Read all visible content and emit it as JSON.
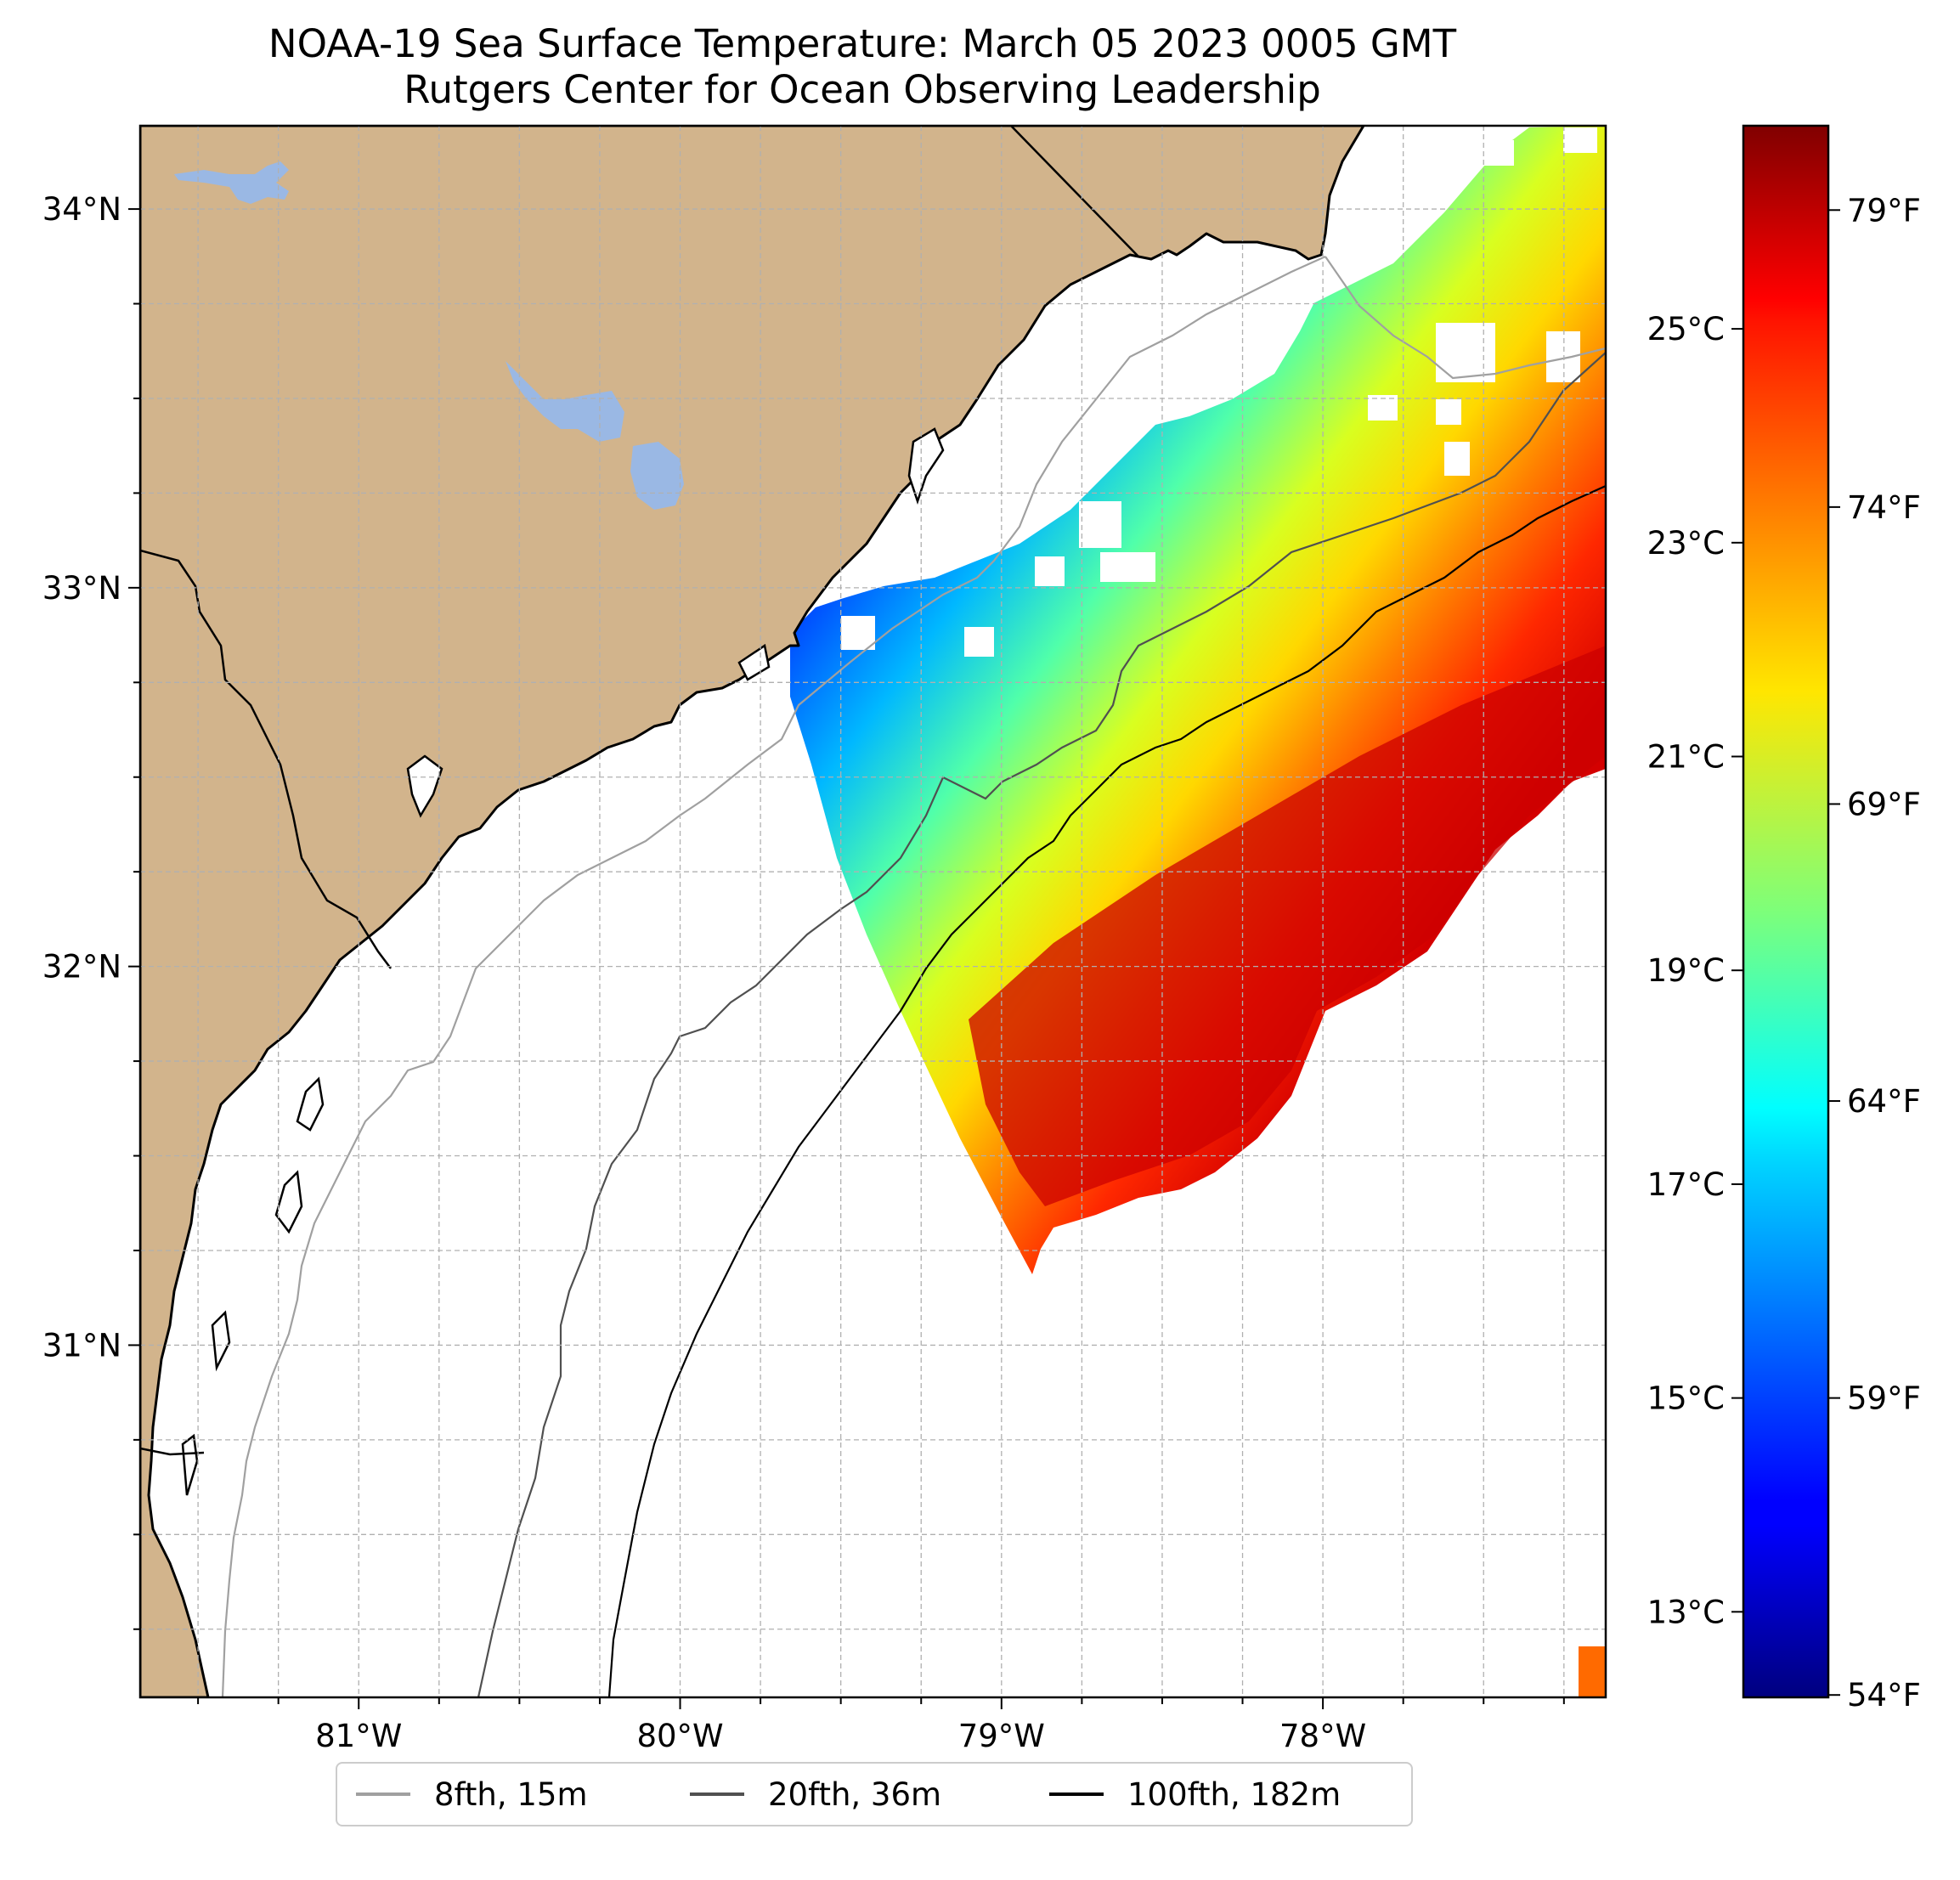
{
  "title": {
    "line1": "NOAA-19 Sea Surface Temperature: March 05 2023 0005 GMT",
    "line2": "Rutgers Center for Ocean Observing Leadership"
  },
  "map": {
    "lon_range": [
      -81.68,
      -77.12
    ],
    "lat_range": [
      30.07,
      34.22
    ],
    "lat_ticks": [
      {
        "value": 34,
        "label": "34°N"
      },
      {
        "value": 33,
        "label": "33°N"
      },
      {
        "value": 32,
        "label": "32°N"
      },
      {
        "value": 31,
        "label": "31°N"
      }
    ],
    "lon_ticks": [
      {
        "value": -81,
        "label": "81°W"
      },
      {
        "value": -80,
        "label": "80°W"
      },
      {
        "value": -79,
        "label": "79°W"
      },
      {
        "value": -78,
        "label": "78°W"
      }
    ],
    "land_color": "#d2b48c",
    "water_color": "#9ab8e4",
    "grid_color": "#b0b0b0"
  },
  "colorbar": {
    "colormap": "jet",
    "range_c": [
      12.2,
      26.9
    ],
    "celsius_ticks": [
      {
        "value": 25,
        "label": "25°C"
      },
      {
        "value": 23,
        "label": "23°C"
      },
      {
        "value": 21,
        "label": "21°C"
      },
      {
        "value": 19,
        "label": "19°C"
      },
      {
        "value": 17,
        "label": "17°C"
      },
      {
        "value": 15,
        "label": "15°C"
      },
      {
        "value": 13,
        "label": "13°C"
      }
    ],
    "fahrenheit_ticks": [
      {
        "value": 79,
        "label": "79°F"
      },
      {
        "value": 74,
        "label": "74°F"
      },
      {
        "value": 69,
        "label": "69°F"
      },
      {
        "value": 64,
        "label": "64°F"
      },
      {
        "value": 59,
        "label": "59°F"
      },
      {
        "value": 54,
        "label": "54°F"
      }
    ]
  },
  "legend": {
    "items": [
      {
        "label": "8fth, 15m",
        "color": "#a0a0a0"
      },
      {
        "label": "20fth, 36m",
        "color": "#505050"
      },
      {
        "label": "100fth, 182m",
        "color": "#000000"
      }
    ]
  }
}
